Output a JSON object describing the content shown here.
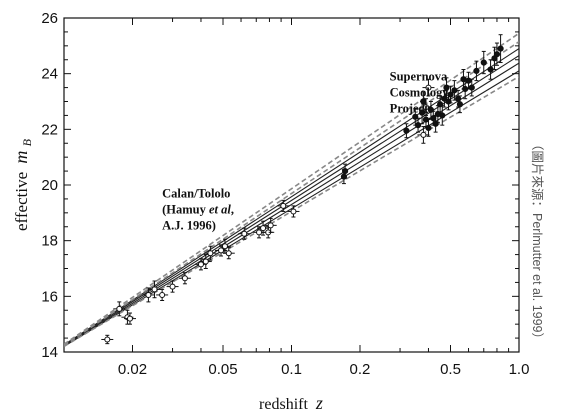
{
  "chart_data": {
    "type": "scatter",
    "title": "",
    "xlabel": "redshift",
    "xlabel_symbol": "z",
    "ylabel": "effective",
    "ylabel_symbol": "m",
    "ylabel_subscript": "B",
    "xscale": "log",
    "xlim": [
      0.01,
      1.0
    ],
    "ylim": [
      14,
      26
    ],
    "xticks": [
      {
        "value": 0.02,
        "label": "0.02"
      },
      {
        "value": 0.05,
        "label": "0.05"
      },
      {
        "value": 0.1,
        "label": "0.1"
      },
      {
        "value": 0.2,
        "label": "0.2"
      },
      {
        "value": 0.5,
        "label": "0.5"
      },
      {
        "value": 1.0,
        "label": "1.0"
      }
    ],
    "yticks": [
      {
        "value": 14,
        "label": "14"
      },
      {
        "value": 16,
        "label": "16"
      },
      {
        "value": 18,
        "label": "18"
      },
      {
        "value": 20,
        "label": "20"
      },
      {
        "value": 22,
        "label": "22"
      },
      {
        "value": 24,
        "label": "24"
      },
      {
        "value": 26,
        "label": "26"
      }
    ],
    "grid": false,
    "annotations": [
      {
        "lines": [
          "Supernova",
          "Cosmology",
          "Project"
        ],
        "x": 0.27,
        "y": 23.75
      },
      {
        "lines": [
          "Calan/Tololo",
          "(Hamuy et al,",
          "A.J. 1996)"
        ],
        "x": 0.027,
        "y": 19.55
      }
    ],
    "credit": "（圖片來源：Perlmutter et al. 1999）",
    "fit_lines": [
      {
        "style": "solid",
        "points": [
          [
            0.01,
            14.2
          ],
          [
            1.0,
            24.1
          ]
        ]
      },
      {
        "style": "solid",
        "points": [
          [
            0.01,
            14.22
          ],
          [
            1.0,
            24.38
          ]
        ]
      },
      {
        "style": "solid",
        "points": [
          [
            0.01,
            14.24
          ],
          [
            1.0,
            24.65
          ]
        ]
      },
      {
        "style": "solid",
        "points": [
          [
            0.01,
            14.26
          ],
          [
            1.0,
            24.9
          ]
        ]
      },
      {
        "style": "dashed",
        "points": [
          [
            0.01,
            14.28
          ],
          [
            1.0,
            25.45
          ]
        ]
      },
      {
        "style": "dashed",
        "points": [
          [
            0.01,
            14.24
          ],
          [
            1.0,
            25.15
          ]
        ]
      },
      {
        "style": "dashed",
        "points": [
          [
            0.01,
            14.2
          ],
          [
            1.0,
            23.9
          ]
        ]
      }
    ],
    "series": [
      {
        "marker": "open-circle",
        "points": [
          [
            0.0155,
            14.45,
            0.15
          ],
          [
            0.0175,
            15.55,
            0.25
          ],
          [
            0.019,
            15.25,
            0.25
          ],
          [
            0.0195,
            15.2,
            0.2
          ],
          [
            0.0235,
            16.05,
            0.25
          ],
          [
            0.025,
            16.25,
            0.3
          ],
          [
            0.027,
            16.05,
            0.2
          ],
          [
            0.03,
            16.35,
            0.2
          ],
          [
            0.034,
            16.65,
            0.2
          ],
          [
            0.04,
            17.15,
            0.2
          ],
          [
            0.042,
            17.25,
            0.25
          ],
          [
            0.044,
            17.55,
            0.25
          ],
          [
            0.049,
            17.65,
            0.2
          ],
          [
            0.051,
            17.8,
            0.25
          ],
          [
            0.053,
            17.55,
            0.2
          ],
          [
            0.062,
            18.25,
            0.2
          ],
          [
            0.072,
            18.3,
            0.2
          ],
          [
            0.075,
            18.45,
            0.25
          ],
          [
            0.079,
            18.3,
            0.2
          ],
          [
            0.081,
            18.55,
            0.25
          ],
          [
            0.092,
            19.25,
            0.2
          ],
          [
            0.102,
            19.05,
            0.2
          ],
          [
            0.38,
            21.8,
            0.3
          ],
          [
            0.39,
            22.8,
            0.3
          ],
          [
            0.4,
            23.5,
            0.3
          ]
        ]
      },
      {
        "marker": "filled-circle",
        "points": [
          [
            0.17,
            20.3,
            0.25
          ],
          [
            0.172,
            20.5,
            0.25
          ],
          [
            0.32,
            21.95,
            0.25
          ],
          [
            0.35,
            22.45,
            0.3
          ],
          [
            0.36,
            22.15,
            0.25
          ],
          [
            0.375,
            22.6,
            0.4
          ],
          [
            0.38,
            23.0,
            0.35
          ],
          [
            0.39,
            22.35,
            0.25
          ],
          [
            0.4,
            22.05,
            0.3
          ],
          [
            0.41,
            22.7,
            0.3
          ],
          [
            0.42,
            22.4,
            0.25
          ],
          [
            0.43,
            22.2,
            0.3
          ],
          [
            0.44,
            22.55,
            0.3
          ],
          [
            0.45,
            22.9,
            0.3
          ],
          [
            0.46,
            22.5,
            0.35
          ],
          [
            0.47,
            23.1,
            0.3
          ],
          [
            0.48,
            23.5,
            0.35
          ],
          [
            0.49,
            23.0,
            0.3
          ],
          [
            0.5,
            23.25,
            0.3
          ],
          [
            0.52,
            23.4,
            0.35
          ],
          [
            0.54,
            23.1,
            0.3
          ],
          [
            0.55,
            22.9,
            0.3
          ],
          [
            0.57,
            23.8,
            0.35
          ],
          [
            0.58,
            23.45,
            0.35
          ],
          [
            0.6,
            23.75,
            0.3
          ],
          [
            0.62,
            23.5,
            0.3
          ],
          [
            0.65,
            24.1,
            0.35
          ],
          [
            0.7,
            24.4,
            0.4
          ],
          [
            0.75,
            24.15,
            0.35
          ],
          [
            0.78,
            24.55,
            0.4
          ],
          [
            0.8,
            24.7,
            0.4
          ],
          [
            0.83,
            24.9,
            0.5
          ]
        ]
      }
    ]
  }
}
